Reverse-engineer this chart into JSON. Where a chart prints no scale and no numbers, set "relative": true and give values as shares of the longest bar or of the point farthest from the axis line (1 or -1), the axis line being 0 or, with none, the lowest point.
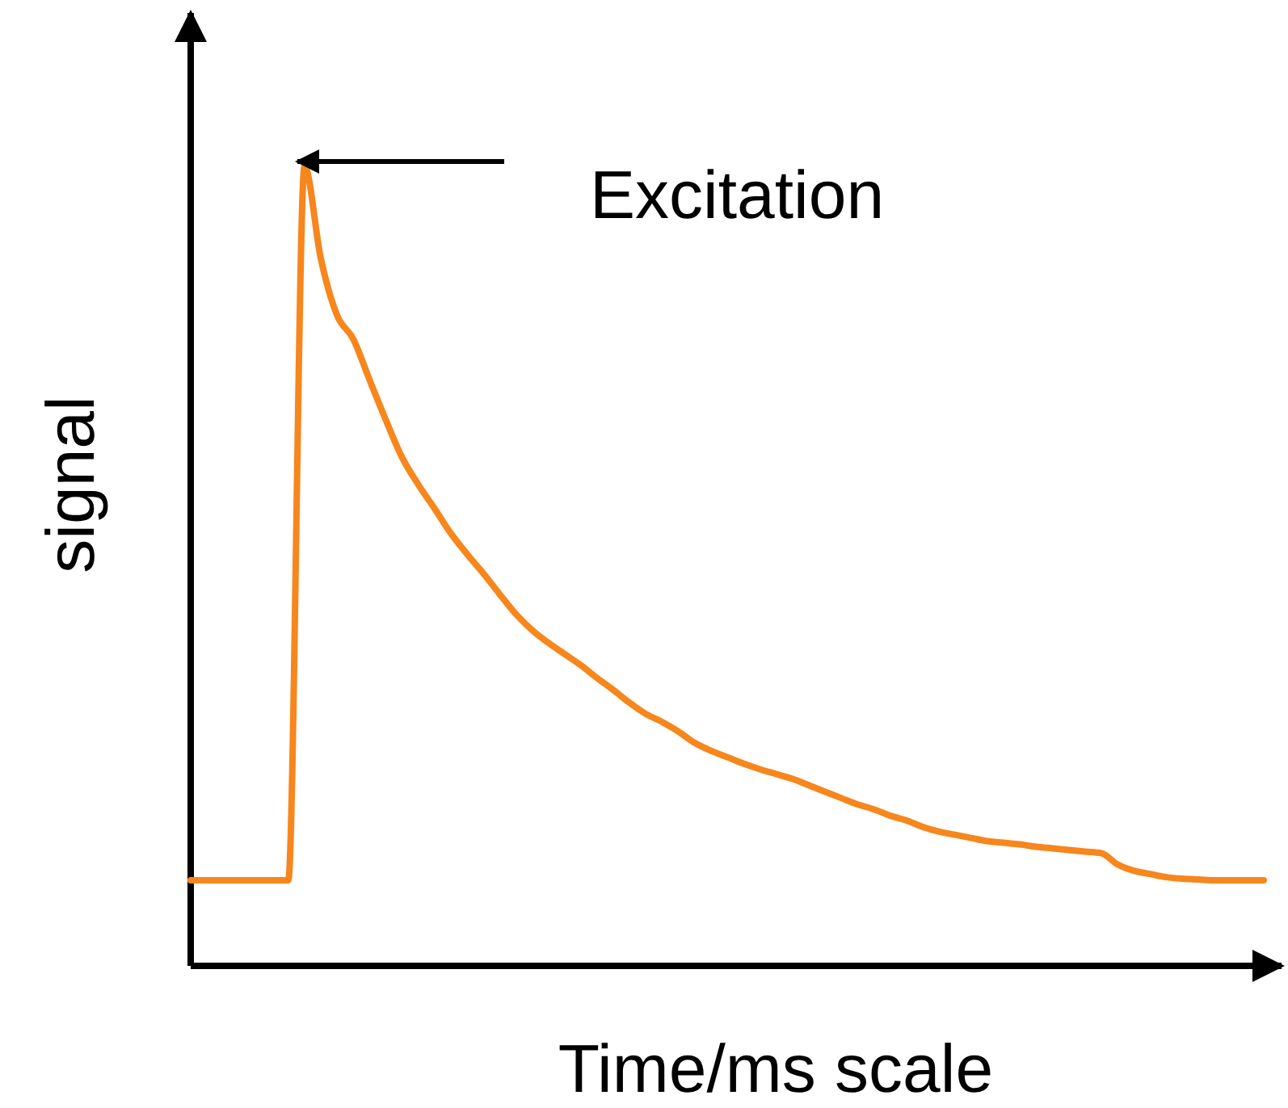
{
  "chart_data": {
    "type": "line",
    "relative": true,
    "xlabel": "Time/ms scale",
    "ylabel": "signal",
    "annotations": [
      "Excitation"
    ],
    "grid": false,
    "marker": "none",
    "line_style": "solid",
    "categories": [
      null,
      null,
      null,
      null,
      null,
      null,
      null,
      null,
      null,
      null,
      null,
      null,
      null,
      null,
      null,
      null,
      null,
      null,
      null,
      null,
      null,
      null,
      null,
      null,
      null,
      null,
      null,
      null,
      null,
      null,
      null,
      null,
      null,
      null,
      null,
      null,
      null,
      null,
      null,
      null,
      null,
      null,
      null,
      null,
      null,
      null,
      null,
      null,
      null,
      null,
      null,
      null,
      null,
      null,
      null,
      null,
      null,
      null,
      null,
      null,
      null,
      null,
      null,
      null,
      null,
      null,
      null
    ],
    "series": [
      {
        "color": "#f7861c",
        "values": [
          0.107,
          0.107,
          0.107,
          0.107,
          0.107,
          0.107,
          0.107,
          1,
          0.885,
          0.814,
          0.784,
          0.733,
          0.683,
          0.636,
          0.602,
          0.572,
          0.541,
          0.515,
          0.491,
          0.465,
          0.44,
          0.42,
          0.404,
          0.39,
          0.376,
          0.36,
          0.345,
          0.329,
          0.315,
          0.305,
          0.293,
          0.279,
          0.269,
          0.261,
          0.253,
          0.246,
          0.24,
          0.234,
          0.226,
          0.218,
          0.21,
          0.202,
          0.196,
          0.188,
          0.182,
          0.174,
          0.168,
          0.164,
          0.16,
          0.156,
          0.154,
          0.152,
          0.149,
          0.147,
          0.145,
          0.143,
          0.141,
          0.127,
          0.119,
          0.115,
          0.111,
          0.109,
          0.108,
          0.107,
          0.107,
          0.107,
          0.107
        ]
      }
    ]
  }
}
